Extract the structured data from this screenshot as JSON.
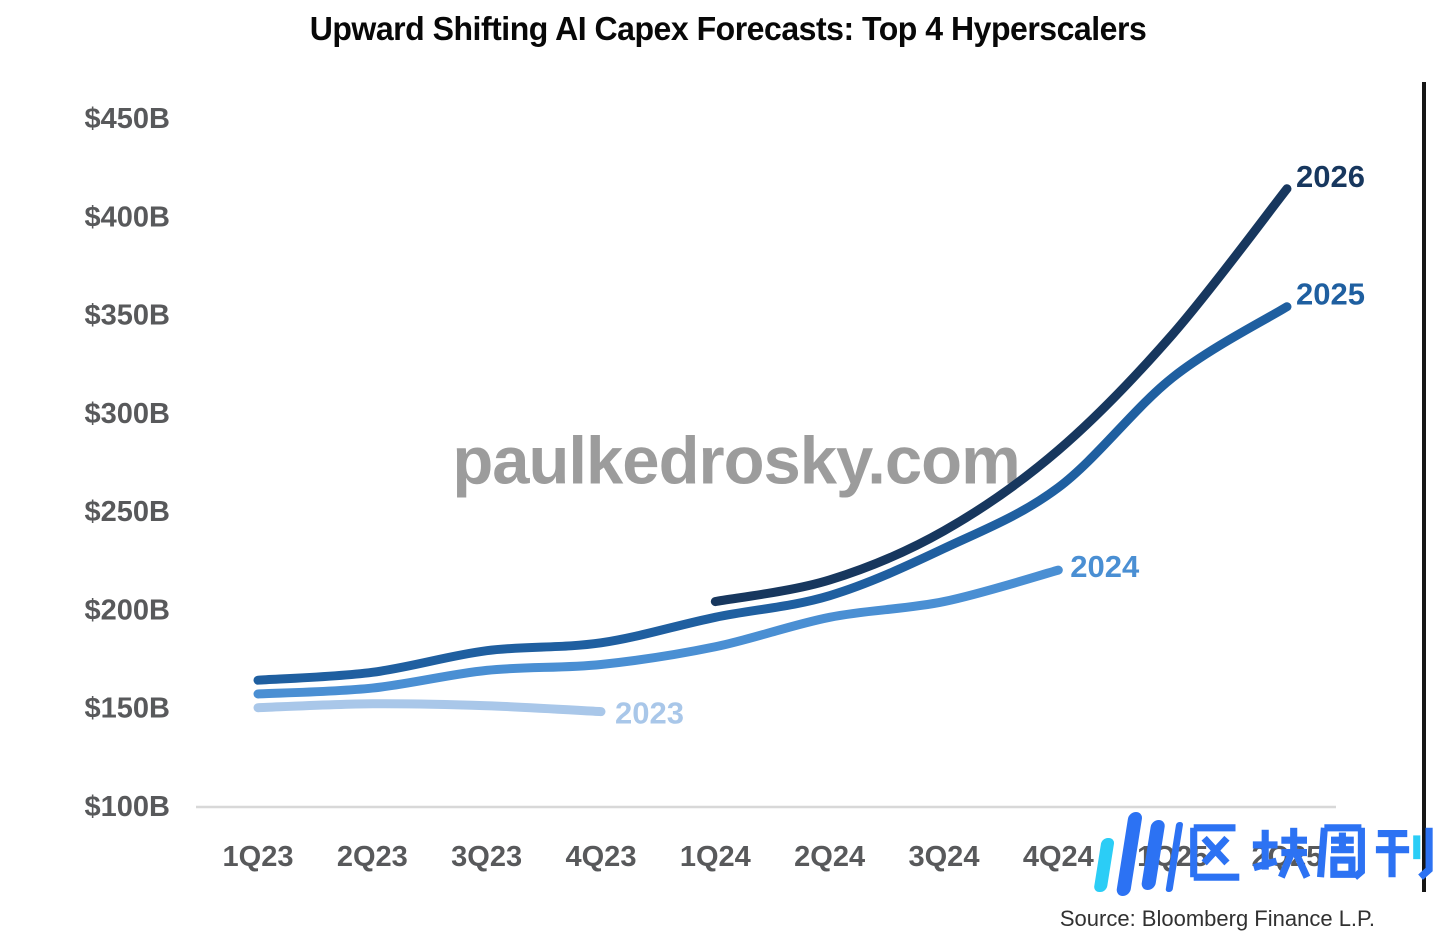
{
  "title": "Upward Shifting AI Capex Forecasts: Top 4 Hyperscalers",
  "watermark_text": "paulkedrosky.com",
  "source_text": "Source: Bloomberg Finance L.P.",
  "overlay_logo": {
    "text": "区块周刊",
    "blue": "#2c72f3",
    "cyan": "#2bcdf6"
  },
  "chart_data": {
    "type": "line",
    "title": "Upward Shifting AI Capex Forecasts: Top 4 Hyperscalers",
    "unit": "$B",
    "xlabel": "",
    "ylabel": "",
    "categories": [
      "1Q23",
      "2Q23",
      "3Q23",
      "4Q23",
      "1Q24",
      "2Q24",
      "3Q24",
      "4Q24",
      "1Q25",
      "2Q25"
    ],
    "ylim": [
      100,
      450
    ],
    "y_ticks": {
      "labels": [
        "$450B",
        "$400B",
        "$350B",
        "$300B",
        "$250B",
        "$200B",
        "$150B",
        "$100B"
      ],
      "values": [
        450,
        400,
        350,
        300,
        250,
        200,
        150,
        100
      ]
    },
    "grid": false,
    "legend_position": "line-end-labels",
    "series": [
      {
        "name": "2023",
        "color": "#a9c7e9",
        "start_index": 0,
        "values": [
          150,
          152,
          151,
          148
        ]
      },
      {
        "name": "2024",
        "color": "#4a8fd3",
        "start_index": 0,
        "values": [
          157,
          160,
          169,
          172,
          181,
          196,
          204,
          220
        ]
      },
      {
        "name": "2025",
        "color": "#1f5fa0",
        "start_index": 0,
        "values": [
          164,
          168,
          179,
          183,
          196,
          207,
          231,
          262,
          318,
          354
        ]
      },
      {
        "name": "2026",
        "color": "#17375e",
        "start_index": 4,
        "values": [
          204,
          215,
          240,
          281,
          340,
          414
        ]
      }
    ]
  }
}
